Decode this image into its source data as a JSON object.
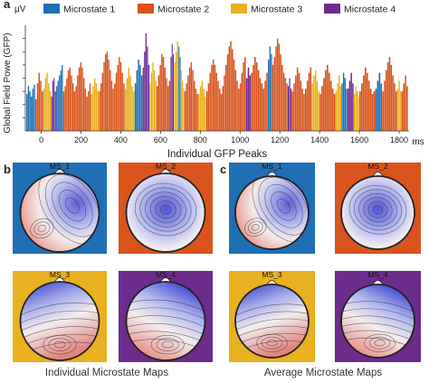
{
  "panels": {
    "a": "a",
    "b": "b",
    "c": "c"
  },
  "chart_data": {
    "type": "bar",
    "title": "",
    "ylabel": "Global Field Powe (GFP)",
    "yunit": "μV",
    "xlabel": "Individual GFP Peaks",
    "xunit": "ms",
    "xlim": [
      -80,
      1850
    ],
    "ylim": [
      0,
      8
    ],
    "x_ticks": [
      0,
      200,
      400,
      600,
      800,
      1000,
      1200,
      1400,
      1600,
      1800
    ],
    "y_ticks": [
      1,
      2,
      3,
      4,
      5,
      6,
      7
    ],
    "grid": false,
    "legend_position": "top",
    "series": [
      {
        "name": "Microstate 1",
        "color": "#1f6fb4"
      },
      {
        "name": "Microstate 2",
        "color": "#d9541c"
      },
      {
        "name": "Microstate 3",
        "color": "#e9b01f"
      },
      {
        "name": "Microstate 4",
        "color": "#6d2b8c"
      }
    ],
    "segments": [
      {
        "ms": 1,
        "x0": -75,
        "x1": -30,
        "values": [
          2.8,
          3.4,
          3.0,
          2.6,
          3.2,
          3.5
        ]
      },
      {
        "ms": 2,
        "x0": -30,
        "x1": 10,
        "values": [
          2.4,
          3.6,
          4.4,
          3.8,
          3.0
        ]
      },
      {
        "ms": 3,
        "x0": 10,
        "x1": 50,
        "values": [
          3.2,
          4.0,
          4.4,
          3.6,
          3.0
        ]
      },
      {
        "ms": 4,
        "x0": 50,
        "x1": 75,
        "values": [
          2.6,
          3.8,
          4.0,
          3.0
        ]
      },
      {
        "ms": 1,
        "x0": 75,
        "x1": 110,
        "values": [
          3.4,
          3.8,
          4.2,
          4.6,
          5.0
        ]
      },
      {
        "ms": 2,
        "x0": 110,
        "x1": 250,
        "values": [
          3.0,
          3.4,
          4.0,
          4.6,
          4.8,
          4.2,
          3.6,
          3.0,
          3.4,
          4.2,
          4.8,
          5.2,
          4.8,
          4.0,
          3.2,
          2.6,
          3.0,
          3.6
        ]
      },
      {
        "ms": 3,
        "x0": 250,
        "x1": 290,
        "values": [
          2.8,
          3.4,
          4.0,
          3.6,
          3.0
        ]
      },
      {
        "ms": 2,
        "x0": 290,
        "x1": 420,
        "values": [
          3.0,
          3.6,
          4.4,
          5.2,
          5.8,
          6.0,
          5.4,
          4.6,
          3.8,
          3.2,
          3.6,
          4.4,
          5.0,
          5.6,
          5.2,
          4.4,
          3.6
        ]
      },
      {
        "ms": 3,
        "x0": 420,
        "x1": 470,
        "values": [
          3.2,
          4.0,
          4.8,
          4.2,
          3.4,
          3.0
        ]
      },
      {
        "ms": 1,
        "x0": 470,
        "x1": 510,
        "values": [
          3.6,
          4.6,
          5.4,
          5.0,
          4.2
        ]
      },
      {
        "ms": 4,
        "x0": 510,
        "x1": 545,
        "values": [
          4.8,
          6.0,
          7.4,
          6.4,
          5.0
        ]
      },
      {
        "ms": 3,
        "x0": 545,
        "x1": 580,
        "values": [
          3.6,
          4.4,
          5.2,
          4.6,
          3.8
        ]
      },
      {
        "ms": 2,
        "x0": 580,
        "x1": 650,
        "values": [
          3.4,
          4.2,
          5.0,
          5.8,
          5.6,
          4.8,
          4.0,
          3.4,
          3.8
        ]
      },
      {
        "ms": 4,
        "x0": 650,
        "x1": 668,
        "values": [
          5.6,
          6.6,
          5.8
        ]
      },
      {
        "ms": 3,
        "x0": 668,
        "x1": 690,
        "values": [
          5.2,
          6.0,
          6.8
        ]
      },
      {
        "ms": 1,
        "x0": 690,
        "x1": 702,
        "values": [
          6.4,
          5.6
        ]
      },
      {
        "ms": 3,
        "x0": 702,
        "x1": 720,
        "values": [
          4.6,
          3.8,
          3.2
        ]
      },
      {
        "ms": 2,
        "x0": 720,
        "x1": 790,
        "values": [
          3.0,
          3.6,
          4.2,
          4.8,
          5.2,
          4.6,
          3.8,
          3.2,
          2.8
        ]
      },
      {
        "ms": 3,
        "x0": 790,
        "x1": 830,
        "values": [
          2.8,
          3.4,
          3.8,
          3.2,
          2.6
        ]
      },
      {
        "ms": 2,
        "x0": 830,
        "x1": 1030,
        "values": [
          3.0,
          3.6,
          4.4,
          5.0,
          5.4,
          5.0,
          4.4,
          3.8,
          3.2,
          2.8,
          3.4,
          4.2,
          5.0,
          5.8,
          6.4,
          6.8,
          6.2,
          5.4,
          4.6,
          3.8,
          3.2,
          3.6,
          4.4,
          5.2,
          5.6
        ]
      },
      {
        "ms": 4,
        "x0": 1030,
        "x1": 1055,
        "values": [
          4.0,
          4.8,
          4.2
        ]
      },
      {
        "ms": 2,
        "x0": 1055,
        "x1": 1140,
        "values": [
          4.4,
          5.0,
          5.6,
          5.2,
          4.6,
          4.0,
          3.6,
          3.2,
          3.8,
          4.4
        ]
      },
      {
        "ms": 1,
        "x0": 1140,
        "x1": 1162,
        "values": [
          5.4,
          6.4,
          5.8
        ]
      },
      {
        "ms": 2,
        "x0": 1162,
        "x1": 1240,
        "values": [
          5.0,
          5.6,
          6.4,
          7.0,
          6.6,
          5.8,
          5.0,
          4.4,
          4.0,
          3.6
        ]
      },
      {
        "ms": 4,
        "x0": 1240,
        "x1": 1260,
        "values": [
          3.4,
          4.0,
          3.2
        ]
      },
      {
        "ms": 2,
        "x0": 1260,
        "x1": 1360,
        "values": [
          3.0,
          3.6,
          4.2,
          4.8,
          4.4,
          3.8,
          3.2,
          2.8,
          3.2,
          3.8,
          4.4,
          4.8
        ]
      },
      {
        "ms": 3,
        "x0": 1360,
        "x1": 1400,
        "values": [
          3.6,
          4.2,
          4.6,
          3.8,
          3.0
        ]
      },
      {
        "ms": 2,
        "x0": 1400,
        "x1": 1480,
        "values": [
          2.8,
          3.4,
          4.0,
          4.6,
          5.0,
          4.4,
          3.8,
          3.2,
          2.8
        ]
      },
      {
        "ms": 3,
        "x0": 1480,
        "x1": 1510,
        "values": [
          3.0,
          3.6,
          4.2,
          3.4
        ]
      },
      {
        "ms": 1,
        "x0": 1510,
        "x1": 1540,
        "values": [
          3.6,
          4.4,
          4.0,
          3.2
        ]
      },
      {
        "ms": 4,
        "x0": 1540,
        "x1": 1572,
        "values": [
          3.2,
          3.8,
          4.4,
          3.6
        ]
      },
      {
        "ms": 3,
        "x0": 1572,
        "x1": 1600,
        "values": [
          2.8,
          3.4,
          3.0,
          2.6
        ]
      },
      {
        "ms": 2,
        "x0": 1600,
        "x1": 1680,
        "values": [
          3.0,
          3.6,
          4.2,
          4.8,
          4.4,
          3.8,
          3.2,
          2.8,
          3.0
        ]
      },
      {
        "ms": 1,
        "x0": 1680,
        "x1": 1715,
        "values": [
          3.2,
          3.8,
          4.4,
          3.6
        ]
      },
      {
        "ms": 2,
        "x0": 1715,
        "x1": 1790,
        "values": [
          3.0,
          3.8,
          4.6,
          5.2,
          5.6,
          5.0,
          4.2,
          3.6,
          3.0
        ]
      },
      {
        "ms": 3,
        "x0": 1790,
        "x1": 1812,
        "values": [
          3.2,
          3.8,
          3.0
        ]
      },
      {
        "ms": 2,
        "x0": 1812,
        "x1": 1845,
        "values": [
          3.0,
          3.6,
          4.2,
          3.4
        ]
      }
    ]
  },
  "maps": {
    "individual": {
      "caption": "Individual Microstate Maps",
      "items": [
        {
          "label": "MS_1",
          "bg": "#1f6fb4",
          "pattern": "ms1"
        },
        {
          "label": "MS_2",
          "bg": "#d9541c",
          "pattern": "ms2"
        },
        {
          "label": "MS_3",
          "bg": "#e9b01f",
          "pattern": "ms3"
        },
        {
          "label": "MS_4",
          "bg": "#6d2b8c",
          "pattern": "ms4"
        }
      ]
    },
    "average": {
      "caption": "Average Microstate Maps",
      "items": [
        {
          "label": "MS_1",
          "bg": "#1f6fb4",
          "pattern": "ms1"
        },
        {
          "label": "MS_2",
          "bg": "#d9541c",
          "pattern": "ms2"
        },
        {
          "label": "MS_3",
          "bg": "#e9b01f",
          "pattern": "ms3"
        },
        {
          "label": "MS_4",
          "bg": "#6d2b8c",
          "pattern": "ms4"
        }
      ]
    }
  }
}
